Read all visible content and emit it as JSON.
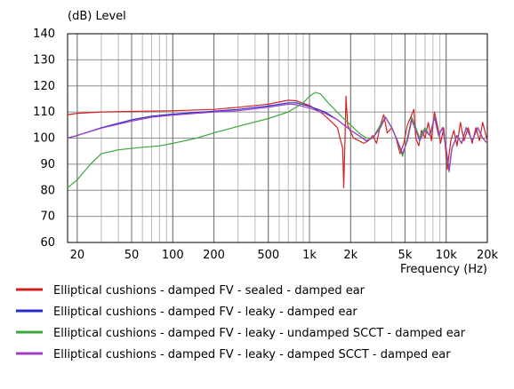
{
  "chart_data": {
    "type": "line",
    "title": "",
    "ylabel": "(dB)  Level",
    "xlabel": "Frequency  (Hz)",
    "x_scale": "log",
    "xlim": [
      17,
      20000
    ],
    "ylim": [
      60,
      140
    ],
    "grid": true,
    "legend_position": "bottom",
    "x_ticks": [
      {
        "value": 20,
        "label": "20"
      },
      {
        "value": 50,
        "label": "50"
      },
      {
        "value": 100,
        "label": "100"
      },
      {
        "value": 200,
        "label": "200"
      },
      {
        "value": 500,
        "label": "500"
      },
      {
        "value": 1000,
        "label": "1k"
      },
      {
        "value": 2000,
        "label": "2k"
      },
      {
        "value": 5000,
        "label": "5k"
      },
      {
        "value": 10000,
        "label": "10k"
      },
      {
        "value": 20000,
        "label": "20k"
      }
    ],
    "y_ticks": [
      60,
      70,
      80,
      90,
      100,
      110,
      120,
      130,
      140
    ],
    "series": [
      {
        "name": "Elliptical cushions - damped FV - sealed - damped ear",
        "color": "#d42020",
        "points": [
          [
            17,
            109
          ],
          [
            20,
            109.5
          ],
          [
            30,
            110
          ],
          [
            50,
            110.2
          ],
          [
            100,
            110.5
          ],
          [
            200,
            111
          ],
          [
            300,
            111.8
          ],
          [
            500,
            113
          ],
          [
            700,
            114.5
          ],
          [
            800,
            114.3
          ],
          [
            1000,
            112.5
          ],
          [
            1200,
            110
          ],
          [
            1400,
            107
          ],
          [
            1600,
            104
          ],
          [
            1750,
            96
          ],
          [
            1780,
            81
          ],
          [
            1820,
            100
          ],
          [
            1850,
            116
          ],
          [
            1900,
            105
          ],
          [
            2100,
            100
          ],
          [
            2300,
            99
          ],
          [
            2500,
            98
          ],
          [
            2700,
            99
          ],
          [
            2900,
            101
          ],
          [
            3100,
            98
          ],
          [
            3300,
            105
          ],
          [
            3500,
            109
          ],
          [
            3700,
            102
          ],
          [
            4000,
            104
          ],
          [
            4300,
            100
          ],
          [
            4600,
            94
          ],
          [
            4900,
            98
          ],
          [
            5200,
            105
          ],
          [
            5500,
            108
          ],
          [
            5800,
            111
          ],
          [
            6000,
            100
          ],
          [
            6300,
            97
          ],
          [
            6600,
            103
          ],
          [
            7000,
            100
          ],
          [
            7400,
            106
          ],
          [
            7800,
            99
          ],
          [
            8200,
            110
          ],
          [
            8700,
            104
          ],
          [
            9100,
            98
          ],
          [
            9600,
            104
          ],
          [
            10200,
            88
          ],
          [
            10800,
            99
          ],
          [
            11400,
            103
          ],
          [
            12000,
            97
          ],
          [
            12700,
            106
          ],
          [
            13500,
            99
          ],
          [
            14500,
            104
          ],
          [
            15500,
            98
          ],
          [
            16500,
            104
          ],
          [
            17500,
            99
          ],
          [
            18500,
            106
          ],
          [
            20000,
            99
          ]
        ]
      },
      {
        "name": "Elliptical cushions - damped FV - leaky - damped ear",
        "color": "#2b2bd0",
        "points": [
          [
            17,
            100
          ],
          [
            20,
            101
          ],
          [
            30,
            104
          ],
          [
            50,
            107
          ],
          [
            70,
            108.4
          ],
          [
            100,
            109.2
          ],
          [
            200,
            110.3
          ],
          [
            300,
            111
          ],
          [
            500,
            112.3
          ],
          [
            700,
            113.5
          ],
          [
            800,
            113.5
          ],
          [
            1000,
            112.2
          ],
          [
            1300,
            110
          ],
          [
            1600,
            107
          ],
          [
            2000,
            103
          ],
          [
            2300,
            101
          ],
          [
            2600,
            99
          ],
          [
            2900,
            100
          ],
          [
            3300,
            104
          ],
          [
            3600,
            108
          ],
          [
            4000,
            104
          ],
          [
            4400,
            99
          ],
          [
            4800,
            94
          ],
          [
            5200,
            99
          ],
          [
            5600,
            107
          ],
          [
            6000,
            103
          ],
          [
            6400,
            99
          ],
          [
            7000,
            103
          ],
          [
            7600,
            101
          ],
          [
            8200,
            108
          ],
          [
            8800,
            101
          ],
          [
            9400,
            104
          ],
          [
            10000,
            96
          ],
          [
            10500,
            88
          ],
          [
            11000,
            96
          ],
          [
            12000,
            101
          ],
          [
            13000,
            98
          ],
          [
            14000,
            104
          ],
          [
            15500,
            99
          ],
          [
            17000,
            104
          ],
          [
            18500,
            100
          ],
          [
            20000,
            98
          ]
        ]
      },
      {
        "name": "Elliptical cushions - damped FV - leaky - undamped SCCT - damped ear",
        "color": "#3aa83a",
        "points": [
          [
            17,
            81
          ],
          [
            20,
            84
          ],
          [
            25,
            90
          ],
          [
            30,
            94
          ],
          [
            40,
            95.5
          ],
          [
            60,
            96.5
          ],
          [
            80,
            97
          ],
          [
            100,
            98
          ],
          [
            150,
            100
          ],
          [
            200,
            102
          ],
          [
            300,
            104.5
          ],
          [
            500,
            107.5
          ],
          [
            700,
            110
          ],
          [
            900,
            113.5
          ],
          [
            1000,
            116
          ],
          [
            1100,
            117.5
          ],
          [
            1200,
            117
          ],
          [
            1400,
            113
          ],
          [
            1700,
            108.5
          ],
          [
            2000,
            105
          ],
          [
            2300,
            102
          ],
          [
            2600,
            100
          ],
          [
            2900,
            100
          ],
          [
            3300,
            105
          ],
          [
            3600,
            108
          ],
          [
            4000,
            104
          ],
          [
            4400,
            99
          ],
          [
            4800,
            93
          ],
          [
            5200,
            100
          ],
          [
            5600,
            108
          ],
          [
            6000,
            104
          ],
          [
            6400,
            100
          ],
          [
            7000,
            104
          ],
          [
            7600,
            101
          ],
          [
            8200,
            108
          ],
          [
            8800,
            101
          ],
          [
            9400,
            104
          ],
          [
            10000,
            96
          ],
          [
            10500,
            88
          ],
          [
            11000,
            96
          ],
          [
            12000,
            101
          ],
          [
            13000,
            98
          ],
          [
            14000,
            104
          ],
          [
            15500,
            99
          ],
          [
            17000,
            104
          ],
          [
            18500,
            100
          ],
          [
            20000,
            98
          ]
        ]
      },
      {
        "name": "Elliptical cushions - damped FV - leaky - damped SCCT - damped ear",
        "color": "#a040c0",
        "points": [
          [
            17,
            100
          ],
          [
            20,
            101
          ],
          [
            30,
            103.8
          ],
          [
            50,
            106.5
          ],
          [
            70,
            108
          ],
          [
            100,
            108.8
          ],
          [
            200,
            110
          ],
          [
            300,
            110.5
          ],
          [
            500,
            111.8
          ],
          [
            700,
            113
          ],
          [
            800,
            112.8
          ],
          [
            1000,
            111.5
          ],
          [
            1300,
            109.5
          ],
          [
            1600,
            107
          ],
          [
            2000,
            103
          ],
          [
            2300,
            101
          ],
          [
            2600,
            99
          ],
          [
            2900,
            100
          ],
          [
            3300,
            104
          ],
          [
            3600,
            108
          ],
          [
            4000,
            104
          ],
          [
            4400,
            99
          ],
          [
            4800,
            94
          ],
          [
            5200,
            99
          ],
          [
            5600,
            107
          ],
          [
            6000,
            103
          ],
          [
            6400,
            99
          ],
          [
            7000,
            103
          ],
          [
            7600,
            101
          ],
          [
            8200,
            108
          ],
          [
            8800,
            101
          ],
          [
            9400,
            104
          ],
          [
            10000,
            96
          ],
          [
            10500,
            87
          ],
          [
            11000,
            96
          ],
          [
            12000,
            101
          ],
          [
            13000,
            98
          ],
          [
            14000,
            104
          ],
          [
            15500,
            99
          ],
          [
            17000,
            104
          ],
          [
            18500,
            100
          ],
          [
            20000,
            98
          ]
        ]
      }
    ]
  }
}
